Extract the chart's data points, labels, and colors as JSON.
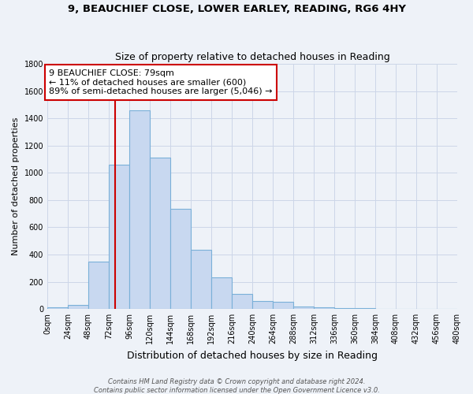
{
  "title": "9, BEAUCHIEF CLOSE, LOWER EARLEY, READING, RG6 4HY",
  "subtitle": "Size of property relative to detached houses in Reading",
  "xlabel": "Distribution of detached houses by size in Reading",
  "ylabel": "Number of detached properties",
  "bin_edges": [
    0,
    24,
    48,
    72,
    96,
    120,
    144,
    168,
    192,
    216,
    240,
    264,
    288,
    312,
    336,
    360,
    384,
    408,
    432,
    456,
    480
  ],
  "bar_heights": [
    10,
    30,
    350,
    1060,
    1460,
    1110,
    735,
    435,
    230,
    110,
    60,
    50,
    18,
    12,
    5,
    4,
    3,
    2,
    1,
    1
  ],
  "bar_color": "#c8d8f0",
  "bar_edgecolor": "#7ab0d8",
  "vline_color": "#cc0000",
  "vline_x": 79,
  "annotation_text": "9 BEAUCHIEF CLOSE: 79sqm\n← 11% of detached houses are smaller (600)\n89% of semi-detached houses are larger (5,046) →",
  "annotation_box_edgecolor": "#cc0000",
  "annotation_box_facecolor": "#ffffff",
  "tick_labels": [
    "0sqm",
    "24sqm",
    "48sqm",
    "72sqm",
    "96sqm",
    "120sqm",
    "144sqm",
    "168sqm",
    "192sqm",
    "216sqm",
    "240sqm",
    "264sqm",
    "288sqm",
    "312sqm",
    "336sqm",
    "360sqm",
    "384sqm",
    "408sqm",
    "432sqm",
    "456sqm",
    "480sqm"
  ],
  "ylim": [
    0,
    1800
  ],
  "yticks": [
    0,
    200,
    400,
    600,
    800,
    1000,
    1200,
    1400,
    1600,
    1800
  ],
  "footer_line1": "Contains HM Land Registry data © Crown copyright and database right 2024.",
  "footer_line2": "Contains public sector information licensed under the Open Government Licence v3.0.",
  "title_fontsize": 9.5,
  "subtitle_fontsize": 9,
  "xlabel_fontsize": 9,
  "ylabel_fontsize": 8,
  "tick_fontsize": 7,
  "footer_fontsize": 6,
  "annotation_fontsize": 8,
  "grid_color": "#ccd6e8",
  "background_color": "#eef2f8"
}
